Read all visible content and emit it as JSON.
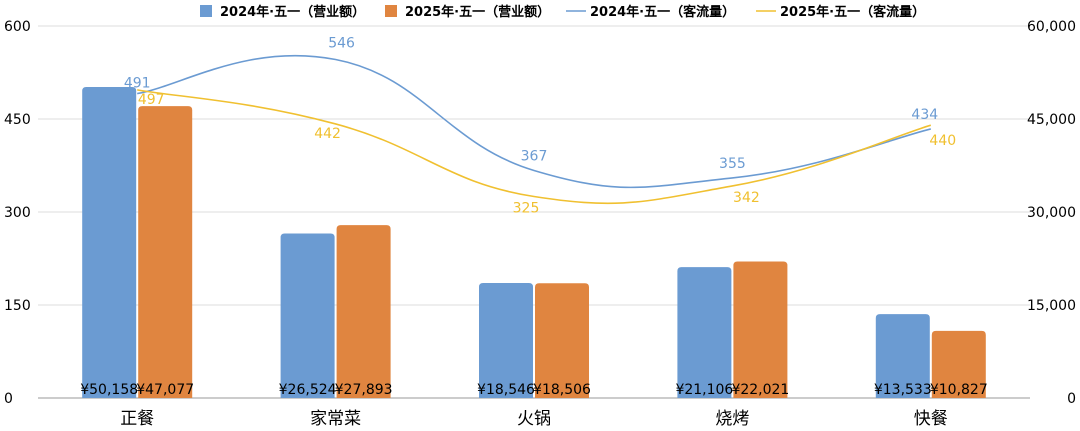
{
  "chart_data": {
    "type": "bar",
    "categories": [
      "正餐",
      "家常菜",
      "火锅",
      "烧烤",
      "快餐"
    ],
    "y_left": {
      "min": 0,
      "max": 600,
      "ticks": [
        "0",
        "150",
        "300",
        "450",
        "600"
      ]
    },
    "y_right": {
      "min": 0,
      "max": 60000,
      "ticks": [
        "0",
        "15,000",
        "30,000",
        "45,000",
        "60,000"
      ]
    },
    "grid": true,
    "legend_position": "top",
    "bar_series": [
      {
        "name": "2024年·五一（营业额）",
        "color": "#6b9bd2",
        "axis": "right",
        "values": [
          50158,
          26524,
          18546,
          21106,
          13533
        ],
        "labels": [
          "¥50,158",
          "¥26,524",
          "¥18,546",
          "¥21,106",
          "¥13,533"
        ]
      },
      {
        "name": "2025年·五一（营业额）",
        "color": "#e08540",
        "axis": "right",
        "values": [
          47077,
          27893,
          18506,
          22021,
          10827
        ],
        "labels": [
          "¥47,077",
          "¥27,893",
          "¥18,506",
          "¥22,021",
          "¥10,827"
        ]
      }
    ],
    "line_series": [
      {
        "name": "2024年·五一（客流量）",
        "color": "#6b9bd2",
        "axis": "left",
        "values": [
          491,
          546,
          367,
          355,
          434
        ],
        "labels": [
          "491",
          "546",
          "367",
          "355",
          "434"
        ]
      },
      {
        "name": "2025年·五一（客流量）",
        "color": "#f0c030",
        "axis": "left",
        "values": [
          497,
          442,
          325,
          342,
          440
        ],
        "labels": [
          "497",
          "442",
          "325",
          "342",
          "440"
        ]
      }
    ]
  }
}
